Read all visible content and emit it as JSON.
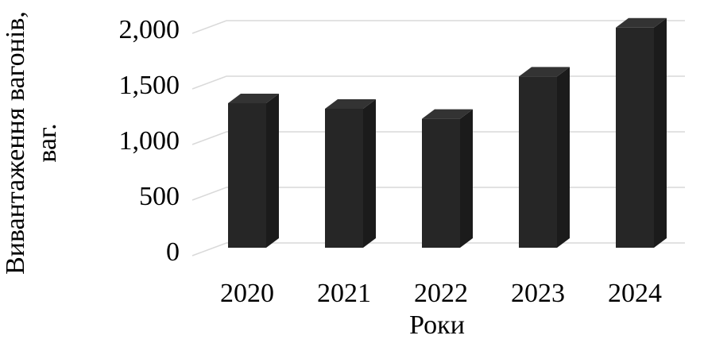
{
  "chart_data": {
    "type": "bar3d",
    "x_label": "Роки",
    "y_label": "Вивантаження вагонів, ваг.",
    "categories": [
      "2020",
      "2021",
      "2022",
      "2023",
      "2024"
    ],
    "values": [
      1300,
      1250,
      1160,
      1540,
      1980
    ],
    "color": "#262626",
    "ylim": [
      0,
      2000
    ],
    "yticks": [
      0,
      500,
      {
        "value": 1000,
        "label": "1,000"
      },
      {
        "value": 1500,
        "label": "1,500"
      },
      {
        "value": 2000,
        "label": "2,000"
      }
    ],
    "grid": true
  }
}
